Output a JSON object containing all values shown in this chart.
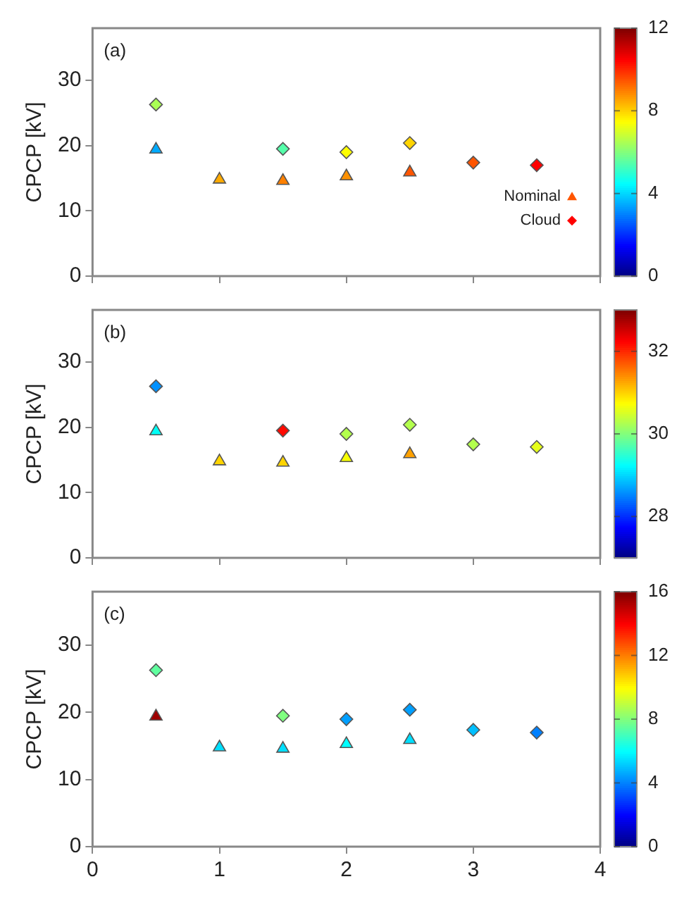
{
  "chart_data": [
    {
      "type": "scatter",
      "ylabel": "CPCP [kV]",
      "annotations": [
        "(a)"
      ],
      "xlim": [
        0,
        4
      ],
      "xticks": [
        0,
        1,
        2,
        3,
        4
      ],
      "ylim": [
        0,
        38
      ],
      "yticks": [
        0,
        10,
        20,
        30
      ],
      "tick_labels": "y",
      "legend": "right",
      "clim": [
        0,
        12
      ],
      "cticks": [
        0,
        4,
        8,
        12
      ],
      "series": [
        {
          "name": "Nominal",
          "type": "scatter",
          "marker": "triangle",
          "x": [
            0.5,
            1,
            1.5,
            2,
            2.5
          ],
          "values": [
            19.4,
            14.8,
            14.6,
            15.3,
            15.9
          ],
          "colors": [
            "#00aaff",
            "#ffaa00",
            "#ff8000",
            "#ff9100",
            "#ff5500"
          ]
        },
        {
          "name": "Cloud",
          "type": "scatter",
          "marker": "diamond",
          "x": [
            0.5,
            1.5,
            2,
            2.5,
            3,
            3.5
          ],
          "values": [
            26.3,
            19.5,
            19.0,
            20.4,
            17.4,
            17.0
          ],
          "colors": [
            "#aaff55",
            "#55ffaa",
            "#ffff00",
            "#ffd400",
            "#ff5500",
            "#ff0000"
          ]
        }
      ]
    },
    {
      "type": "scatter",
      "ylabel": "CPCP [kV]",
      "annotations": [
        "(b)"
      ],
      "xlim": [
        0,
        4
      ],
      "xticks": [
        0,
        1,
        2,
        3,
        4
      ],
      "ylim": [
        0,
        38
      ],
      "yticks": [
        0,
        10,
        20,
        30
      ],
      "tick_labels": "y",
      "clim": [
        27,
        33
      ],
      "cticks": [
        28,
        30,
        32
      ],
      "series": [
        {
          "type": "scatter",
          "marker": "triangle",
          "x": [
            0.5,
            1,
            1.5,
            2,
            2.5
          ],
          "values": [
            19.4,
            14.8,
            14.6,
            15.3,
            15.9
          ],
          "colors": [
            "#00fff7",
            "#ffd400",
            "#ffd400",
            "#f7ff00",
            "#ffa100"
          ]
        },
        {
          "type": "scatter",
          "marker": "diamond",
          "x": [
            0.5,
            1.5,
            2,
            2.5,
            3,
            3.5
          ],
          "values": [
            26.3,
            19.5,
            19.0,
            20.4,
            17.4,
            17.0
          ],
          "colors": [
            "#0091ff",
            "#ff0900",
            "#b3ff4d",
            "#b3ff4d",
            "#b3ff4d",
            "#e6ff1a"
          ]
        }
      ]
    },
    {
      "type": "scatter",
      "ylabel": "CPCP [kV]",
      "annotations": [
        "(c)"
      ],
      "xlim": [
        0,
        4
      ],
      "xticks": [
        0,
        1,
        2,
        3,
        4
      ],
      "ylim": [
        0,
        38
      ],
      "yticks": [
        0,
        10,
        20,
        30
      ],
      "clim": [
        0,
        16
      ],
      "cticks": [
        0,
        4,
        8,
        12,
        16
      ],
      "series": [
        {
          "type": "scatter",
          "marker": "triangle",
          "x": [
            0.5,
            1,
            1.5,
            2,
            2.5
          ],
          "values": [
            19.4,
            14.8,
            14.6,
            15.3,
            15.9
          ],
          "colors": [
            "#9f0000",
            "#00dfff",
            "#00dfff",
            "#00ffff",
            "#00dfff"
          ]
        },
        {
          "type": "scatter",
          "marker": "diamond",
          "x": [
            0.5,
            1.5,
            2,
            2.5,
            3,
            3.5
          ],
          "values": [
            26.3,
            19.5,
            19.0,
            20.4,
            17.4,
            17.0
          ],
          "colors": [
            "#60ff9f",
            "#80ff80",
            "#009fff",
            "#009fff",
            "#00bfff",
            "#0080ff"
          ]
        }
      ]
    }
  ]
}
